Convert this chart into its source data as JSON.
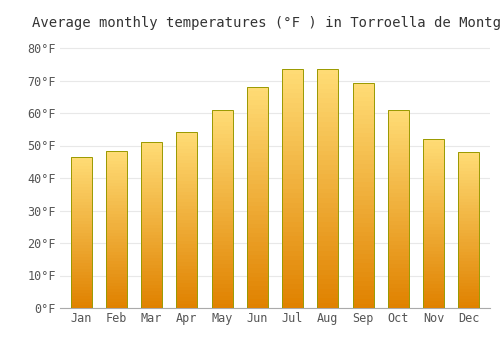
{
  "title": "Average monthly temperatures (°F ) in Torroella de Montgrí",
  "months": [
    "Jan",
    "Feb",
    "Mar",
    "Apr",
    "May",
    "Jun",
    "Jul",
    "Aug",
    "Sep",
    "Oct",
    "Nov",
    "Dec"
  ],
  "values": [
    46.4,
    48.2,
    51.1,
    54.3,
    61.0,
    68.0,
    73.4,
    73.4,
    69.1,
    61.0,
    52.0,
    48.0
  ],
  "bar_color_mid": "#FFA500",
  "bar_color_top": "#FFDD88",
  "bar_color_bottom": "#E08000",
  "bar_edge_color": "#888800",
  "background_color": "#ffffff",
  "grid_color": "#e8e8e8",
  "ytick_labels": [
    "0°F",
    "10°F",
    "20°F",
    "30°F",
    "40°F",
    "50°F",
    "60°F",
    "70°F",
    "80°F"
  ],
  "ytick_values": [
    0,
    10,
    20,
    30,
    40,
    50,
    60,
    70,
    80
  ],
  "ylim": [
    0,
    84
  ],
  "title_fontsize": 10,
  "tick_fontsize": 8.5,
  "tick_font": "monospace"
}
